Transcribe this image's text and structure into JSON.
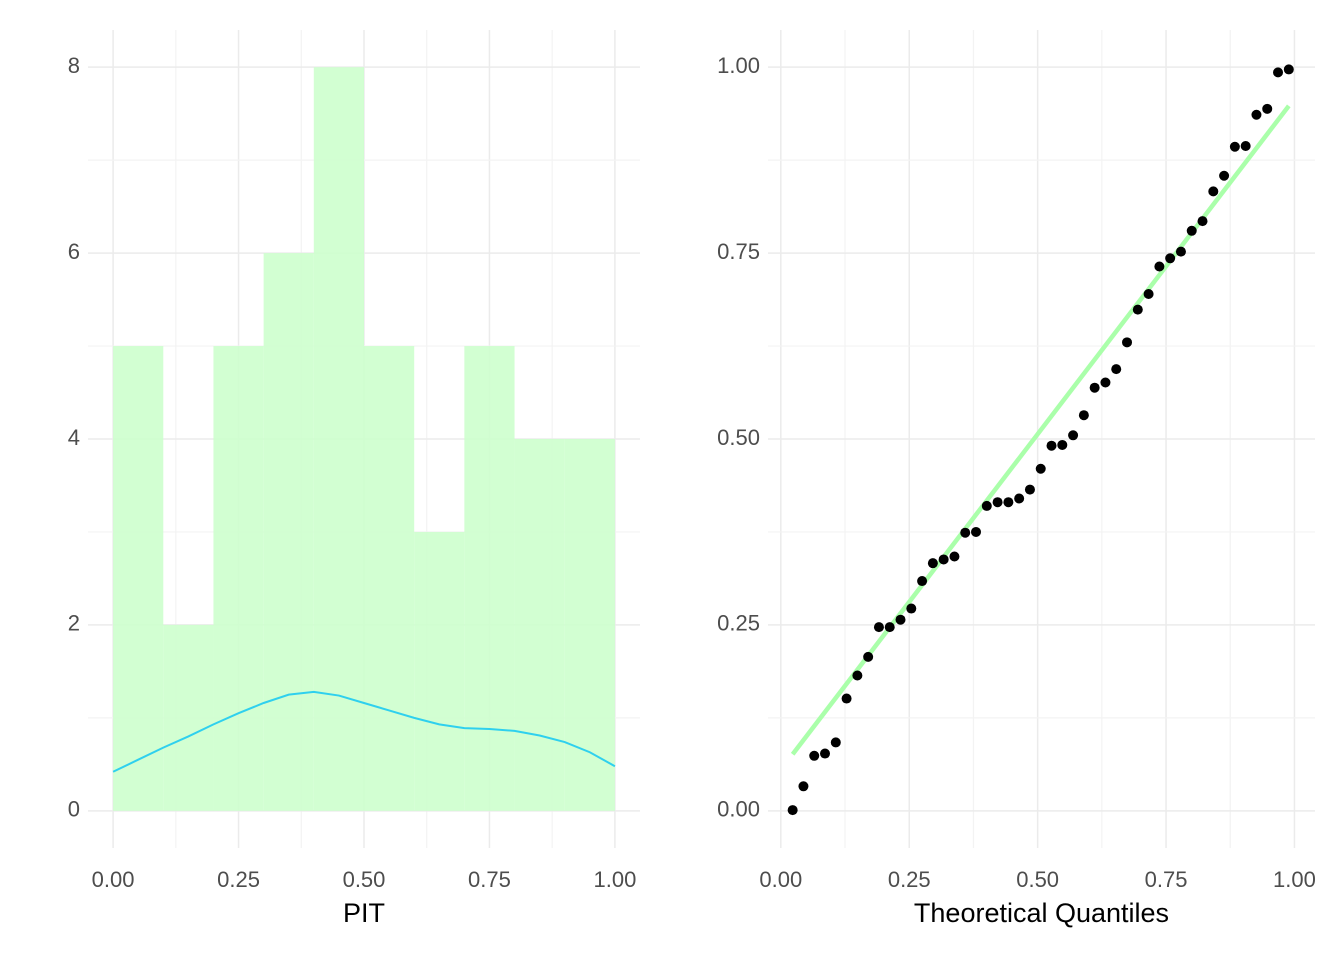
{
  "chart_data": [
    {
      "type": "histogram",
      "x_label": "PIT",
      "bins": [
        0,
        0.1,
        0.2,
        0.3,
        0.4,
        0.5,
        0.6,
        0.7,
        0.8,
        0.9,
        1.0
      ],
      "counts": [
        5,
        2,
        5,
        6,
        8,
        5,
        3,
        5,
        4,
        4
      ],
      "color": "#ccffcc",
      "density": {
        "x": [
          0,
          0.05,
          0.1,
          0.15,
          0.2,
          0.25,
          0.3,
          0.35,
          0.4,
          0.45,
          0.5,
          0.55,
          0.6,
          0.65,
          0.7,
          0.75,
          0.8,
          0.85,
          0.9,
          0.95,
          1.0
        ],
        "values": [
          0.42,
          0.55,
          0.68,
          0.8,
          0.93,
          1.05,
          1.16,
          1.25,
          1.28,
          1.24,
          1.16,
          1.08,
          1.0,
          0.93,
          0.89,
          0.88,
          0.86,
          0.81,
          0.74,
          0.63,
          0.48
        ],
        "color": "#2fd0ee"
      },
      "xlim": [
        -0.05,
        1.05
      ],
      "ylim": [
        -0.4,
        8.4
      ],
      "xticks": [
        {
          "value": 0,
          "label": "0.00"
        },
        {
          "value": 0.25,
          "label": "0.25"
        },
        {
          "value": 0.5,
          "label": "0.50"
        },
        {
          "value": 0.75,
          "label": "0.75"
        },
        {
          "value": 1,
          "label": "1.00"
        }
      ],
      "yticks": [
        0,
        2,
        4,
        6,
        8
      ],
      "grid": true
    },
    {
      "type": "scatter",
      "x_label": "Theoretical Quantiles",
      "x": [
        0.023,
        0.044,
        0.065,
        0.086,
        0.107,
        0.128,
        0.149,
        0.17,
        0.191,
        0.212,
        0.233,
        0.254,
        0.275,
        0.296,
        0.317,
        0.338,
        0.359,
        0.38,
        0.401,
        0.422,
        0.443,
        0.464,
        0.485,
        0.506,
        0.527,
        0.548,
        0.569,
        0.59,
        0.611,
        0.632,
        0.653,
        0.674,
        0.695,
        0.716,
        0.737,
        0.758,
        0.779,
        0.8,
        0.821,
        0.842,
        0.863,
        0.884,
        0.905,
        0.926,
        0.947,
        0.968,
        0.989
      ],
      "values": [
        0.001,
        0.033,
        0.074,
        0.077,
        0.092,
        0.151,
        0.182,
        0.207,
        0.247,
        0.247,
        0.257,
        0.272,
        0.309,
        0.333,
        0.338,
        0.342,
        0.374,
        0.375,
        0.41,
        0.415,
        0.415,
        0.42,
        0.432,
        0.46,
        0.491,
        0.492,
        0.505,
        0.532,
        0.569,
        0.576,
        0.594,
        0.63,
        0.674,
        0.695,
        0.732,
        0.743,
        0.752,
        0.78,
        0.793,
        0.833,
        0.854,
        0.893,
        0.894,
        0.936,
        0.944,
        0.993,
        0.997
      ],
      "color": "#000000",
      "reference_line": {
        "x": [
          0.023,
          0.989
        ],
        "values": [
          0.076,
          0.948
        ],
        "color": "#aaffaa"
      },
      "xlim": [
        -0.025,
        1.04
      ],
      "ylim": [
        -0.05,
        1.05
      ],
      "xticks": [
        {
          "value": 0,
          "label": "0.00"
        },
        {
          "value": 0.25,
          "label": "0.25"
        },
        {
          "value": 0.5,
          "label": "0.50"
        },
        {
          "value": 0.75,
          "label": "0.75"
        },
        {
          "value": 1,
          "label": "1.00"
        }
      ],
      "yticks": [
        {
          "value": 0,
          "label": "0.00"
        },
        {
          "value": 0.25,
          "label": "0.25"
        },
        {
          "value": 0.5,
          "label": "0.50"
        },
        {
          "value": 0.75,
          "label": "0.75"
        },
        {
          "value": 1,
          "label": "1.00"
        }
      ],
      "grid": true
    }
  ]
}
